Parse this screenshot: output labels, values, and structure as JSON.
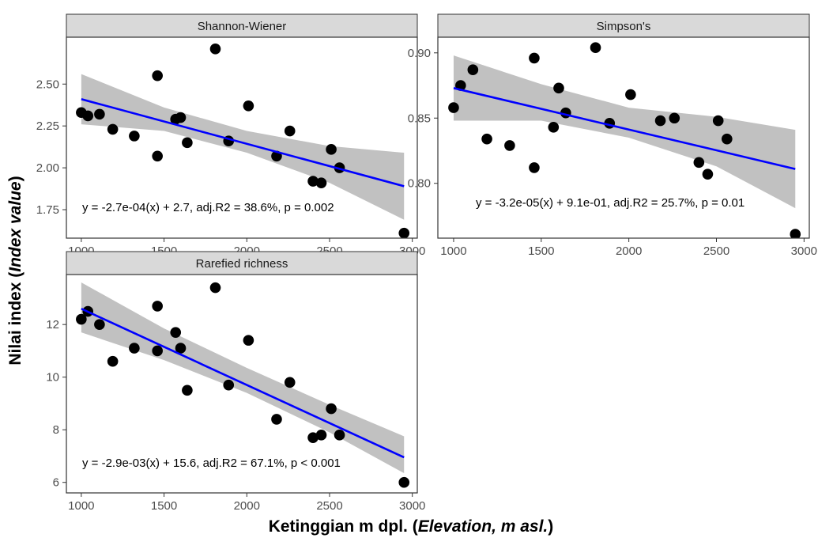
{
  "colors": {
    "point": "#000000",
    "line": "#0000ff",
    "band": "#bebebe",
    "strip_fill": "#d9d9d9",
    "border": "#333333"
  },
  "axis_titles": {
    "x_main": "Ketinggian m dpl. (",
    "x_italic": "Elevation, m asl.",
    "x_end": ")",
    "y_main": "Nilai index (",
    "y_italic": "Index value",
    "y_end": ")"
  },
  "chart_data": [
    {
      "type": "scatter",
      "title": "Shannon-Wiener",
      "annotation": "y = -2.7e-04(x) + 2.7, adj.R2 = 38.6%, p = 0.002",
      "xlim": [
        910,
        3030
      ],
      "ylim": [
        1.58,
        2.78
      ],
      "xticks": [
        1000,
        1500,
        2000,
        2500,
        3000
      ],
      "yticks": [
        1.75,
        2.0,
        2.25,
        2.5
      ],
      "ytick_labels": [
        "1.75",
        "2.00",
        "2.25",
        "2.50"
      ],
      "x": [
        1000,
        1040,
        1110,
        1190,
        1320,
        1460,
        1460,
        1570,
        1600,
        1640,
        1810,
        1890,
        2010,
        2180,
        2260,
        2400,
        2450,
        2510,
        2560,
        2950
      ],
      "y": [
        2.33,
        2.31,
        2.32,
        2.23,
        2.19,
        2.55,
        2.07,
        2.29,
        2.3,
        2.15,
        2.71,
        2.16,
        2.37,
        2.07,
        2.22,
        1.92,
        1.91,
        2.11,
        2.0,
        1.61
      ],
      "fit": {
        "x": [
          1000,
          2950
        ],
        "y": [
          2.41,
          1.89
        ]
      },
      "band": {
        "x": [
          1000,
          1500,
          2000,
          2500,
          2950
        ],
        "lower": [
          2.26,
          2.22,
          2.09,
          1.91,
          1.69
        ],
        "upper": [
          2.56,
          2.36,
          2.22,
          2.13,
          2.09
        ]
      },
      "grid": false,
      "legend": "none"
    },
    {
      "type": "scatter",
      "title": "Simpson's",
      "annotation": "y = -3.2e-05(x) + 9.1e-01, adj.R2 = 25.7%, p = 0.01",
      "xlim": [
        910,
        3030
      ],
      "ylim": [
        0.758,
        0.912
      ],
      "xticks": [
        1000,
        1500,
        2000,
        2500,
        3000
      ],
      "yticks": [
        0.8,
        0.85,
        0.9
      ],
      "ytick_labels": [
        "0.80",
        "0.85",
        "0.90"
      ],
      "x": [
        1000,
        1040,
        1110,
        1190,
        1320,
        1460,
        1460,
        1570,
        1600,
        1640,
        1810,
        1890,
        2010,
        2180,
        2260,
        2400,
        2450,
        2510,
        2560,
        2950
      ],
      "y": [
        0.858,
        0.875,
        0.887,
        0.834,
        0.829,
        0.896,
        0.812,
        0.843,
        0.873,
        0.854,
        0.904,
        0.846,
        0.868,
        0.848,
        0.85,
        0.816,
        0.807,
        0.848,
        0.834,
        0.761
      ],
      "fit": {
        "x": [
          1000,
          2950
        ],
        "y": [
          0.873,
          0.811
        ]
      },
      "band": {
        "x": [
          1000,
          1500,
          2000,
          2500,
          2950
        ],
        "lower": [
          0.848,
          0.848,
          0.835,
          0.813,
          0.781
        ],
        "upper": [
          0.898,
          0.876,
          0.858,
          0.851,
          0.841
        ]
      },
      "grid": false,
      "legend": "none"
    },
    {
      "type": "scatter",
      "title": "Rarefied richness",
      "annotation": "y = -2.9e-03(x) + 15.6, adj.R2 = 67.1%, p < 0.001",
      "xlim": [
        910,
        3030
      ],
      "ylim": [
        5.6,
        13.9
      ],
      "xticks": [
        1000,
        1500,
        2000,
        2500,
        3000
      ],
      "yticks": [
        6,
        8,
        10,
        12
      ],
      "ytick_labels": [
        "6",
        "8",
        "10",
        "12"
      ],
      "x": [
        1000,
        1040,
        1110,
        1190,
        1320,
        1460,
        1460,
        1570,
        1600,
        1640,
        1810,
        1890,
        2010,
        2180,
        2260,
        2400,
        2450,
        2510,
        2560,
        2950
      ],
      "y": [
        12.2,
        12.5,
        12.0,
        10.6,
        11.1,
        12.7,
        11.0,
        11.7,
        11.1,
        9.5,
        13.4,
        9.7,
        11.4,
        8.4,
        9.8,
        7.7,
        7.8,
        8.8,
        7.8,
        6.0
      ],
      "fit": {
        "x": [
          1000,
          2950
        ],
        "y": [
          12.6,
          6.95
        ]
      },
      "band": {
        "x": [
          1000,
          1500,
          2000,
          2500,
          2950
        ],
        "lower": [
          11.7,
          10.65,
          9.4,
          7.9,
          6.35
        ],
        "upper": [
          13.6,
          11.85,
          10.35,
          8.95,
          7.75
        ]
      },
      "grid": false,
      "legend": "none"
    }
  ]
}
